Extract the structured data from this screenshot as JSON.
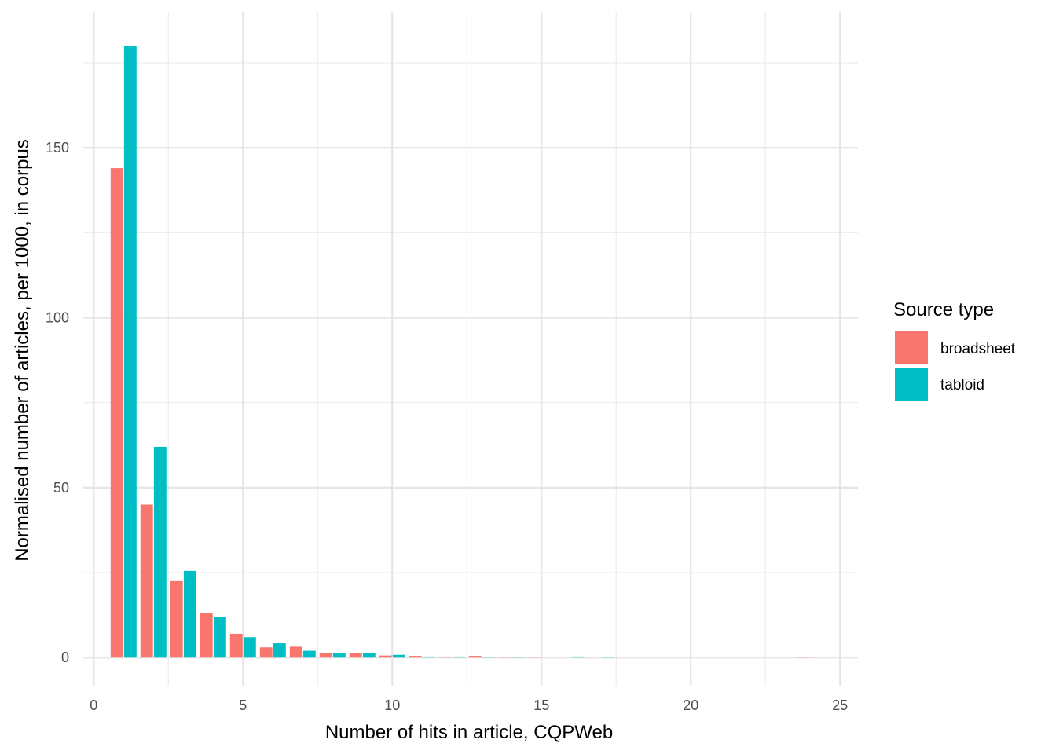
{
  "chart_data": {
    "type": "bar",
    "xlabel": "Number of hits in article, CQPWeb",
    "ylabel": "Normalised number of articles, per 1000, in corpus",
    "xlim": [
      -0.35,
      25.6
    ],
    "ylim": [
      -8.5,
      190
    ],
    "x_ticks": [
      0,
      5,
      10,
      15,
      20,
      25
    ],
    "y_ticks": [
      0,
      50,
      100,
      150
    ],
    "x_tick_labels": [
      "0",
      "5",
      "10",
      "15",
      "20",
      "25"
    ],
    "y_tick_labels": [
      "0",
      "50",
      "100",
      "150"
    ],
    "grid": true,
    "legend_position": "right",
    "legend": {
      "title": "Source type",
      "items": [
        {
          "label": "broadsheet",
          "color": "#F8766D"
        },
        {
          "label": "tabloid",
          "color": "#00BFC4"
        }
      ]
    },
    "series": [
      {
        "name": "broadsheet",
        "color": "#F8766D",
        "x": [
          1,
          2,
          3,
          4,
          5,
          6,
          7,
          8,
          9,
          10,
          11,
          12,
          13,
          14,
          15,
          24
        ],
        "values": [
          144,
          45,
          22.5,
          13,
          7,
          3,
          3.2,
          1.3,
          1.3,
          0.6,
          0.5,
          0.3,
          0.5,
          0.2,
          0.2,
          0.2
        ]
      },
      {
        "name": "tabloid",
        "color": "#00BFC4",
        "x": [
          1,
          2,
          3,
          4,
          5,
          6,
          7,
          8,
          9,
          10,
          11,
          12,
          13,
          14,
          16,
          17
        ],
        "values": [
          180,
          62,
          25.5,
          12,
          6,
          4.2,
          2,
          1.3,
          1.3,
          0.8,
          0.3,
          0.3,
          0.2,
          0.2,
          0.3,
          0.2
        ]
      }
    ]
  }
}
